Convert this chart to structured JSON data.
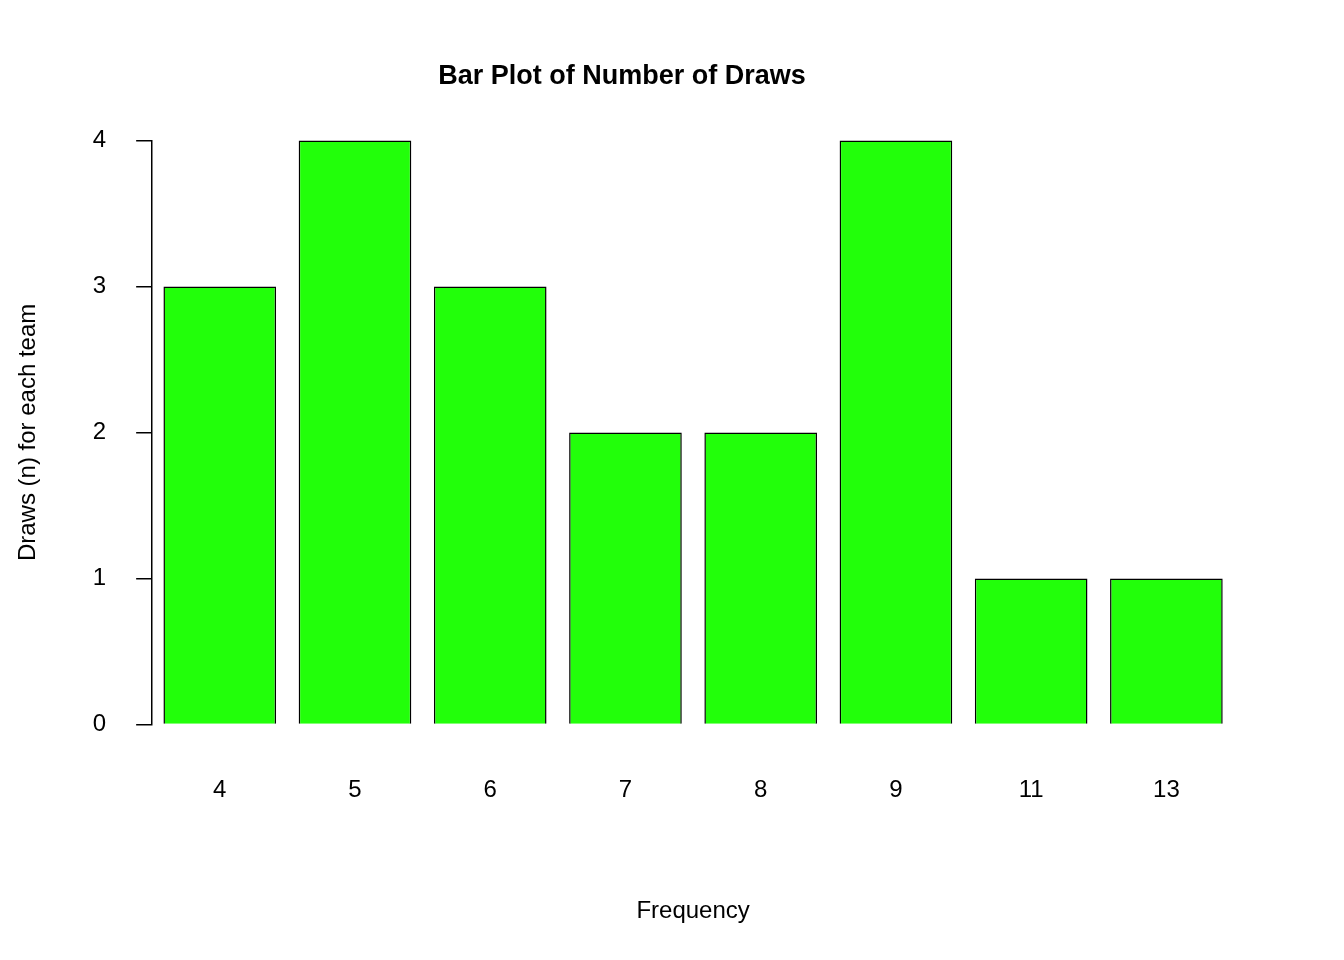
{
  "chart_data": {
    "type": "bar",
    "title": "Bar Plot of Number of Draws",
    "xlabel": "Frequency",
    "ylabel": "Draws (n) for each team",
    "categories": [
      "4",
      "5",
      "6",
      "7",
      "8",
      "9",
      "11",
      "13"
    ],
    "values": [
      3,
      4,
      3,
      2,
      2,
      4,
      1,
      1
    ],
    "color": "#22ff0a",
    "ylim": [
      0,
      4
    ],
    "yticks": [
      0,
      1,
      2,
      3,
      4
    ]
  }
}
